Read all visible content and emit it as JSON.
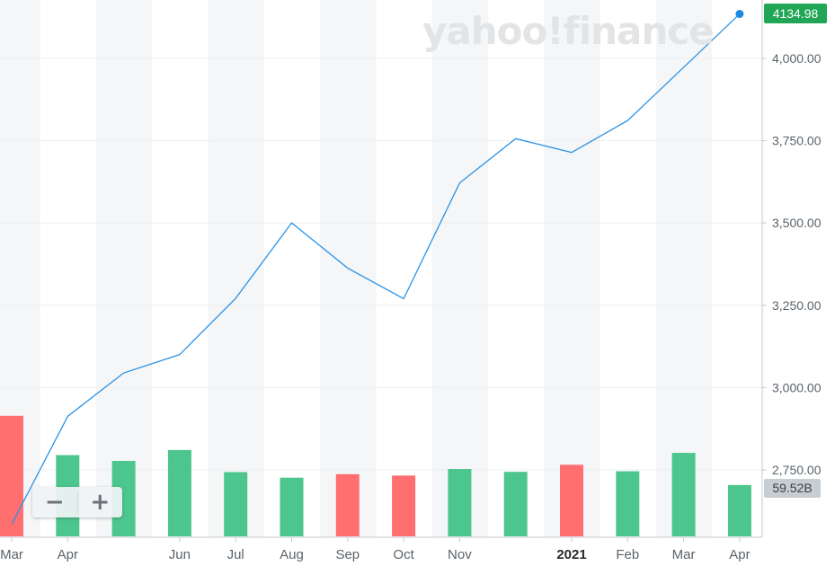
{
  "brand": {
    "watermark": "yahoo!finance"
  },
  "price_label": "4134.98",
  "volume_label": "59.52B",
  "zoom": {
    "minus_label": "−",
    "plus_label": "+"
  },
  "colors": {
    "line": "#2b93e6",
    "up_volume": "#4dc58e",
    "down_volume": "#ff6f70",
    "band": "#f5f6f7",
    "grid": "#eceff1",
    "price_badge": "#21a656"
  },
  "chart_data": {
    "type": "line",
    "title": "",
    "xlabel": "",
    "ylabel": "",
    "x_ticks": [
      "Mar",
      "Apr",
      "Jun",
      "Jul",
      "Aug",
      "Sep",
      "Oct",
      "Nov",
      "2021",
      "Feb",
      "Mar",
      "Apr"
    ],
    "x": [
      "Mar 2020",
      "Apr 2020",
      "May 2020",
      "Jun 2020",
      "Jul 2020",
      "Aug 2020",
      "Sep 2020",
      "Oct 2020",
      "Nov 2020",
      "Dec 2020",
      "Jan 2021",
      "Feb 2021",
      "Mar 2021",
      "Apr 2021"
    ],
    "series": [
      {
        "values": [
          2584.59,
          2912.43,
          3044.31,
          3100.29,
          3271.12,
          3500.31,
          3363.0,
          3269.96,
          3621.63,
          3756.07,
          3714.24,
          3811.15,
          3972.89,
          4134.98
        ]
      }
    ],
    "y_ticks": [
      2750,
      3000,
      3250,
      3500,
      3750,
      4000
    ],
    "y_tick_labels": [
      "2,750.00",
      "3,000.00",
      "3,250.00",
      "3,500.00",
      "3,750.00",
      "4,000.00"
    ],
    "ylim": [
      2525,
      4175
    ],
    "grid": true,
    "legend": "none",
    "volume": {
      "unit": "B",
      "values": [
        139.8,
        94.2,
        87.5,
        100.1,
        74.5,
        68.0,
        72.1,
        70.5,
        78.1,
        74.8,
        83.0,
        75.5,
        96.8,
        59.52
      ],
      "direction": [
        "down",
        "up",
        "up",
        "up",
        "up",
        "up",
        "down",
        "down",
        "up",
        "up",
        "down",
        "up",
        "up",
        "up"
      ]
    }
  }
}
